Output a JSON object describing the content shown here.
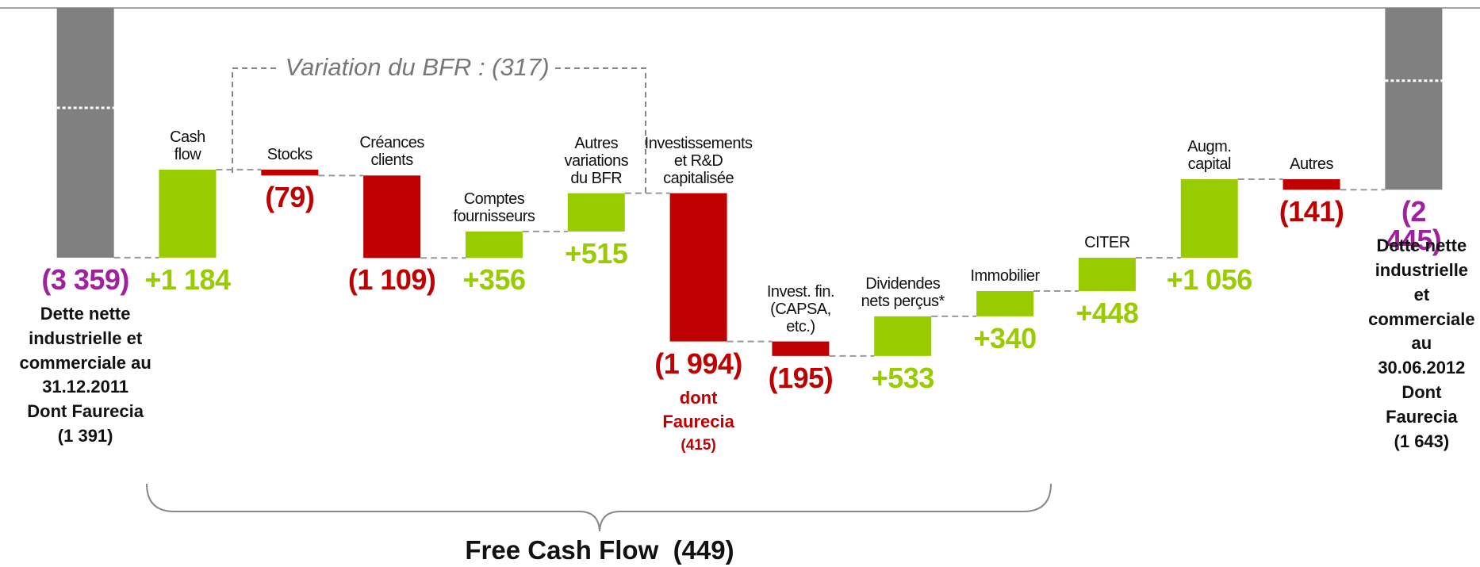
{
  "chart_data": {
    "type": "waterfall",
    "categories": [
      null,
      "Cash\nflow",
      "Stocks",
      "Créances\nclients",
      "Comptes\nfournisseurs",
      "Autres\nvariations\ndu BFR",
      "Investissements\net R&D\ncapitalisée",
      "Invest. fin.\n(CAPSA,\netc.)",
      "Dividendes\nnets perçus*",
      "Immobilier",
      "CITER",
      "Augm.\ncapital",
      "Autres",
      null
    ],
    "values": [
      -3359,
      1184,
      -79,
      -1109,
      356,
      515,
      -1994,
      -195,
      533,
      340,
      448,
      1056,
      -141,
      -2445
    ],
    "value_labels": [
      "(3 359)",
      "+1 184",
      "(79)",
      "(1 109)",
      "+356",
      "+515",
      "(1 994)",
      "(195)",
      "+533",
      "+340",
      "+448",
      "+1 056",
      "(141)",
      "(2 445)"
    ],
    "measure": [
      "absolute",
      "relative",
      "relative",
      "relative",
      "relative",
      "relative",
      "relative",
      "relative",
      "relative",
      "relative",
      "relative",
      "relative",
      "relative",
      "absolute"
    ],
    "colors": {
      "total": "#808080",
      "increase": "#99cc00",
      "decrease": "#c00000",
      "total_label": "#a0209f"
    },
    "ylim": [
      -4800,
      0
    ],
    "start_note": "Dette nette\nindustrielle et\ncommerciale au\n31.12.2011\nDont Faurecia\n(1 391)",
    "end_note": "Dette nette\nindustrielle et\ncommerciale\nau 30.06.2012\nDont Faurecia\n(1 643)",
    "invest_note": "dont\nFaurecia",
    "invest_note_value": "(415)",
    "bfr_note": "Variation du BFR : (317)",
    "free_cash_flow": "Free Cash Flow  (449)"
  }
}
